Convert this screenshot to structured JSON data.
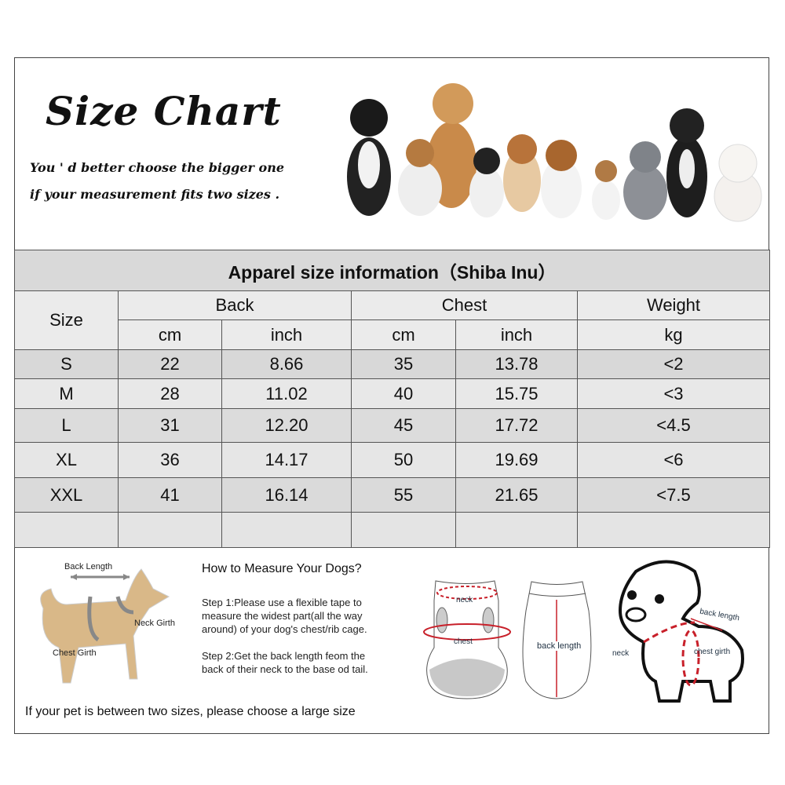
{
  "header": {
    "title": "Size Chart",
    "subtitle_line1": "You ' d better choose the bigger one",
    "subtitle_line2": "if your measurement fits two sizes ."
  },
  "table": {
    "title": "Apparel  size  information（Shiba Inu）",
    "size_header": "Size",
    "groups": [
      "Back",
      "Chest",
      "Weight"
    ],
    "units": [
      "cm",
      "inch",
      "cm",
      "inch",
      "kg"
    ],
    "rows": [
      [
        "S",
        "22",
        "8.66",
        "35",
        "13.78",
        "<2"
      ],
      [
        "M",
        "28",
        "11.02",
        "40",
        "15.75",
        "<3"
      ],
      [
        "L",
        "31",
        "12.20",
        "45",
        "17.72",
        "<4.5"
      ],
      [
        "XL",
        "36",
        "14.17",
        "50",
        "19.69",
        "<6"
      ],
      [
        "XXL",
        "41",
        "16.14",
        "55",
        "21.65",
        "<7.5"
      ]
    ]
  },
  "measure": {
    "dog_labels": {
      "back_length": "Back Length",
      "neck_girth": "Neck Girth",
      "chest_girth": "Chest Girth"
    },
    "heading": "How to Measure Your Dogs?",
    "step1": [
      "Step 1:Please use a flexible tape to",
      "measure the widest part(all the way",
      "around) of your dog's chest/rib cage."
    ],
    "step2": [
      "Step 2:Get the back length feom the",
      "back of their neck to the base od tail."
    ],
    "garment_labels": {
      "neck": "neck",
      "chest": "chest",
      "back_length": "back length"
    },
    "cartoon_labels": {
      "back_length": "back length",
      "neck": "neck",
      "chest_girth": "chest girth"
    },
    "footer": "If your pet is between two sizes, please choose a large size"
  },
  "colors": {
    "accent_red": "#c8202a",
    "table_gray": "#d9d9d9"
  }
}
